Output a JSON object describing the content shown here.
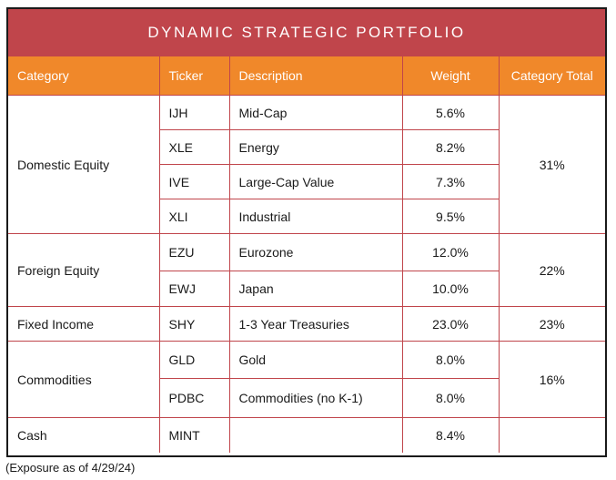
{
  "title": "DYNAMIC STRATEGIC PORTFOLIO",
  "headers": {
    "category": "Category",
    "ticker": "Ticker",
    "description": "Description",
    "weight": "Weight",
    "total": "Category Total"
  },
  "groups": [
    {
      "category": "Domestic Equity",
      "total": "31%",
      "rows": [
        {
          "ticker": "IJH",
          "description": "Mid-Cap",
          "weight": "5.6%"
        },
        {
          "ticker": "XLE",
          "description": "Energy",
          "weight": "8.2%"
        },
        {
          "ticker": "IVE",
          "description": "Large-Cap Value",
          "weight": "7.3%"
        },
        {
          "ticker": "XLI",
          "description": "Industrial",
          "weight": "9.5%"
        }
      ]
    },
    {
      "category": "Foreign Equity",
      "total": "22%",
      "rows": [
        {
          "ticker": "EZU",
          "description": "Eurozone",
          "weight": "12.0%"
        },
        {
          "ticker": "EWJ",
          "description": "Japan",
          "weight": "10.0%"
        }
      ]
    },
    {
      "category": "Fixed Income",
      "total": "23%",
      "rows": [
        {
          "ticker": "SHY",
          "description": "1-3 Year Treasuries",
          "weight": "23.0%"
        }
      ]
    },
    {
      "category": "Commodities",
      "total": "16%",
      "rows": [
        {
          "ticker": "GLD",
          "description": "Gold",
          "weight": "8.0%"
        },
        {
          "ticker": "PDBC",
          "description": "Commodities (no K-1)",
          "weight": "8.0%"
        }
      ]
    },
    {
      "category": "Cash",
      "total": "",
      "rows": [
        {
          "ticker": "MINT",
          "description": "",
          "weight": "8.4%"
        }
      ]
    }
  ],
  "footnote": "(Exposure as of 4/29/24)",
  "colors": {
    "title_bg": "#c0454b",
    "header_bg": "#f0882a",
    "grid": "#c0454b"
  }
}
